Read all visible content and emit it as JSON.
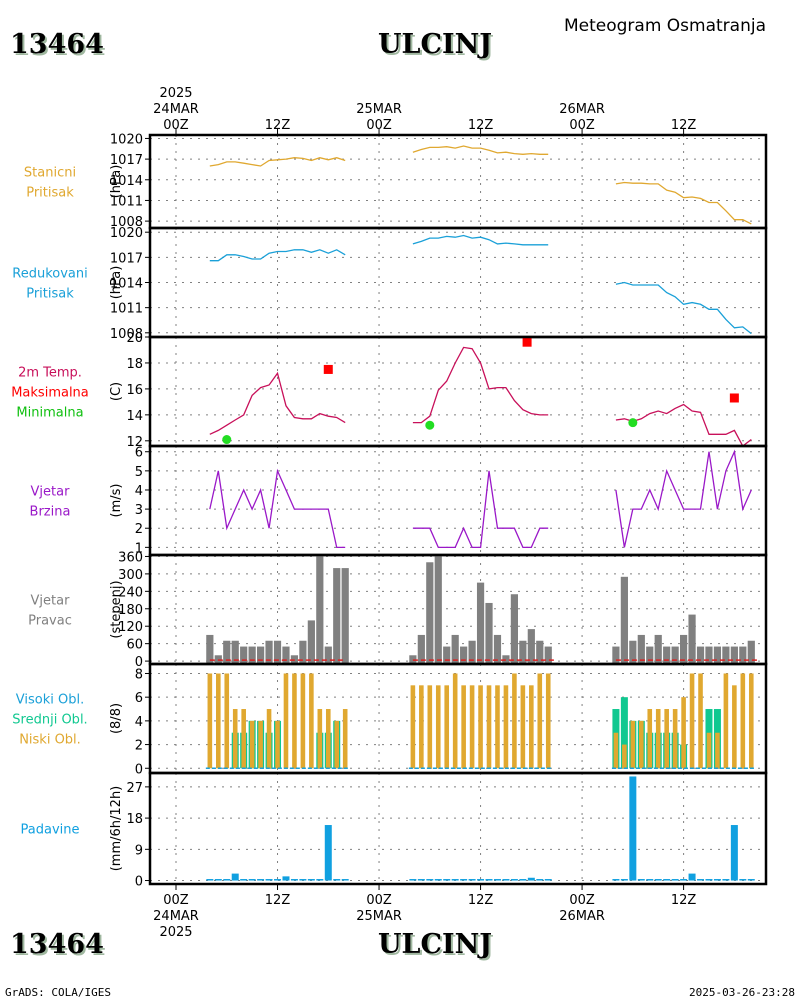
{
  "header": {
    "station_id": "13464",
    "station_name": "ULCINJ",
    "subtitle": "Meteogram Osmatranja"
  },
  "footer": {
    "credit": "GrADS: COLA/IGES",
    "timestamp": "2025-03-26-23:28"
  },
  "time_axis": {
    "start": "2025-03-24 00Z",
    "ticks": [
      {
        "hour": 0,
        "label": "00Z",
        "date": "24MAR",
        "year": "2025"
      },
      {
        "hour": 12,
        "label": "12Z",
        "date": "",
        "year": ""
      },
      {
        "hour": 24,
        "label": "00Z",
        "date": "25MAR",
        "year": ""
      },
      {
        "hour": 36,
        "label": "12Z",
        "date": "",
        "year": ""
      },
      {
        "hour": 48,
        "label": "00Z",
        "date": "26MAR",
        "year": ""
      },
      {
        "hour": 60,
        "label": "12Z",
        "date": "",
        "year": ""
      }
    ],
    "range_hours": [
      -3,
      70
    ]
  },
  "chart_data": [
    {
      "type": "line",
      "id": "station_pressure",
      "title": [
        "Stanicni",
        "Pritisak"
      ],
      "ylabel": "(hPa)",
      "color": "#e0a830",
      "ylim": [
        1007,
        1020.5
      ],
      "yticks": [
        1008,
        1011,
        1014,
        1017,
        1020
      ],
      "segments": [
        {
          "x": [
            4,
            5,
            6,
            7,
            8,
            9,
            10,
            11,
            12,
            13,
            14,
            15,
            16,
            17,
            18,
            19,
            20
          ],
          "y": [
            1016.0,
            1016.2,
            1016.6,
            1016.6,
            1016.4,
            1016.2,
            1016.0,
            1016.8,
            1016.9,
            1017.0,
            1017.2,
            1017.1,
            1016.8,
            1017.2,
            1016.9,
            1017.2,
            1016.8
          ]
        },
        {
          "x": [
            28,
            29,
            30,
            31,
            32,
            33,
            34,
            35,
            36,
            37,
            38,
            39,
            40,
            41,
            42,
            43,
            44
          ],
          "y": [
            1018.0,
            1018.4,
            1018.7,
            1018.7,
            1018.8,
            1018.6,
            1018.9,
            1018.6,
            1018.6,
            1018.3,
            1017.9,
            1018.0,
            1017.8,
            1017.7,
            1017.8,
            1017.7,
            1017.7
          ]
        },
        {
          "x": [
            52,
            53,
            54,
            55,
            56,
            57,
            58,
            59,
            60,
            61,
            62,
            63,
            64,
            65,
            66,
            67,
            68
          ],
          "y": [
            1013.4,
            1013.6,
            1013.5,
            1013.5,
            1013.4,
            1013.4,
            1012.5,
            1012.2,
            1011.4,
            1011.5,
            1011.3,
            1010.7,
            1010.7,
            1009.5,
            1008.2,
            1008.2,
            1007.6
          ]
        }
      ]
    },
    {
      "type": "line",
      "id": "reduced_pressure",
      "title": [
        "Redukovani",
        "Pritisak"
      ],
      "ylabel": "(hPa)",
      "color": "#1aa0d8",
      "ylim": [
        1007.5,
        1020.5
      ],
      "yticks": [
        1008,
        1011,
        1014,
        1017,
        1020
      ],
      "segments": [
        {
          "x": [
            4,
            5,
            6,
            7,
            8,
            9,
            10,
            11,
            12,
            13,
            14,
            15,
            16,
            17,
            18,
            19,
            20
          ],
          "y": [
            1016.6,
            1016.6,
            1017.3,
            1017.3,
            1017.1,
            1016.8,
            1016.8,
            1017.5,
            1017.7,
            1017.7,
            1017.9,
            1017.9,
            1017.6,
            1017.9,
            1017.5,
            1017.9,
            1017.3
          ]
        },
        {
          "x": [
            28,
            29,
            30,
            31,
            32,
            33,
            34,
            35,
            36,
            37,
            38,
            39,
            40,
            41,
            42,
            43,
            44
          ],
          "y": [
            1018.6,
            1018.9,
            1019.3,
            1019.3,
            1019.5,
            1019.4,
            1019.6,
            1019.3,
            1019.4,
            1019.1,
            1018.6,
            1018.7,
            1018.6,
            1018.5,
            1018.5,
            1018.5,
            1018.5
          ]
        },
        {
          "x": [
            52,
            53,
            54,
            55,
            56,
            57,
            58,
            59,
            60,
            61,
            62,
            63,
            64,
            65,
            66,
            67,
            68
          ],
          "y": [
            1013.8,
            1014.0,
            1013.7,
            1013.7,
            1013.7,
            1013.7,
            1012.8,
            1012.3,
            1011.4,
            1011.6,
            1011.4,
            1010.8,
            1010.8,
            1009.6,
            1008.6,
            1008.7,
            1007.9
          ]
        }
      ]
    },
    {
      "type": "line",
      "id": "temperature",
      "title": [
        "2m Temp.",
        "Maksimalna",
        "Minimalna"
      ],
      "title_colors": [
        "#c8105a",
        "#ff0000",
        "#10c010"
      ],
      "ylabel": "(C)",
      "color": "#c8105a",
      "ylim": [
        11.6,
        20
      ],
      "yticks": [
        12,
        14,
        16,
        18,
        20
      ],
      "segments": [
        {
          "x": [
            4,
            5,
            6,
            7,
            8,
            9,
            10,
            11,
            12,
            13,
            14,
            15,
            16,
            17,
            18,
            19,
            20
          ],
          "y": [
            12.5,
            12.8,
            13.2,
            13.6,
            14.0,
            15.5,
            16.1,
            16.3,
            17.2,
            14.7,
            13.8,
            13.7,
            13.7,
            14.1,
            13.9,
            13.8,
            13.4
          ]
        },
        {
          "x": [
            28,
            29,
            30,
            31,
            32,
            33,
            34,
            35,
            36,
            37,
            38,
            39,
            40,
            41,
            42,
            43,
            44
          ],
          "y": [
            13.4,
            13.4,
            13.9,
            15.9,
            16.6,
            18.0,
            19.2,
            19.1,
            18.0,
            16.0,
            16.1,
            16.1,
            15.1,
            14.4,
            14.1,
            14.0,
            14.0
          ]
        },
        {
          "x": [
            52,
            53,
            54,
            55,
            56,
            57,
            58,
            59,
            60,
            61,
            62,
            63,
            64,
            65,
            66,
            67,
            68
          ],
          "y": [
            13.6,
            13.7,
            13.5,
            13.7,
            14.1,
            14.3,
            14.1,
            14.5,
            14.8,
            14.3,
            14.2,
            12.5,
            12.5,
            12.5,
            12.8,
            11.6,
            12.1
          ]
        }
      ],
      "max_points": [
        {
          "x": 18,
          "y": 17.5
        },
        {
          "x": 41.5,
          "y": 19.6
        },
        {
          "x": 66,
          "y": 15.3
        }
      ],
      "min_points": [
        {
          "x": 6,
          "y": 12.1
        },
        {
          "x": 30,
          "y": 13.2
        },
        {
          "x": 54,
          "y": 13.4
        }
      ],
      "max_color": "#ff0000",
      "min_color": "#22dd22"
    },
    {
      "type": "line",
      "id": "wind_speed",
      "title": [
        "Vjetar",
        "Brzina"
      ],
      "ylabel": "(m/s)",
      "color": "#9a18c8",
      "ylim": [
        0.6,
        6.3
      ],
      "yticks": [
        1,
        2,
        3,
        4,
        5,
        6
      ],
      "segments": [
        {
          "x": [
            4,
            5,
            6,
            7,
            8,
            9,
            10,
            11,
            12,
            13,
            14,
            15,
            16,
            17,
            18,
            19,
            20
          ],
          "y": [
            3,
            5,
            2,
            3,
            4,
            3,
            4,
            2,
            5,
            4,
            3,
            3,
            3,
            3,
            3,
            1,
            1
          ]
        },
        {
          "x": [
            28,
            29,
            30,
            31,
            32,
            33,
            34,
            35,
            36,
            37,
            38,
            39,
            40,
            41,
            42,
            43,
            44
          ],
          "y": [
            2,
            2,
            2,
            1,
            1,
            1,
            2,
            1,
            1,
            5,
            2,
            2,
            2,
            1,
            1,
            2,
            2
          ]
        },
        {
          "x": [
            52,
            53,
            54,
            55,
            56,
            57,
            58,
            59,
            60,
            61,
            62,
            63,
            64,
            65,
            66,
            67,
            68
          ],
          "y": [
            4,
            1,
            3,
            3,
            4,
            3,
            5,
            4,
            3,
            3,
            3,
            6,
            3,
            5,
            6,
            3,
            4
          ]
        }
      ]
    },
    {
      "type": "bar",
      "id": "wind_direction",
      "title": [
        "Vjetar",
        "Pravac"
      ],
      "ylabel": "(stepeni)",
      "color": "#808080",
      "baseline_color": "#dd2020",
      "ylim": [
        -10,
        365
      ],
      "yticks": [
        0,
        60,
        120,
        180,
        240,
        300,
        360
      ],
      "groups": [
        {
          "x": [
            4,
            5,
            6,
            7,
            8,
            9,
            10,
            11,
            12,
            13,
            14,
            15,
            16,
            17,
            18,
            19,
            20
          ],
          "y": [
            90,
            20,
            70,
            70,
            50,
            50,
            50,
            70,
            70,
            50,
            20,
            70,
            140,
            360,
            50,
            320,
            320
          ]
        },
        {
          "x": [
            28,
            29,
            30,
            31,
            32,
            33,
            34,
            35,
            36,
            37,
            38,
            39,
            40,
            41,
            42,
            43,
            44,
            45
          ],
          "y": [
            20,
            90,
            340,
            360,
            50,
            90,
            50,
            70,
            270,
            200,
            90,
            20,
            230,
            70,
            110,
            70,
            50,
            0
          ]
        },
        {
          "x": [
            52,
            53,
            54,
            55,
            56,
            57,
            58,
            59,
            60,
            61,
            62,
            63,
            64,
            65,
            66,
            67,
            68,
            69
          ],
          "y": [
            50,
            290,
            70,
            90,
            50,
            90,
            50,
            50,
            90,
            160,
            50,
            50,
            50,
            50,
            50,
            50,
            70,
            0
          ]
        }
      ]
    },
    {
      "type": "bar",
      "id": "cloud_cover",
      "title": [
        "Visoki Obl.",
        "Srednji Obl.",
        "Niski Obl."
      ],
      "title_colors": [
        "#1aa0d8",
        "#10c890",
        "#e0a830"
      ],
      "ylabel": "(8/8)",
      "ylim": [
        -0.4,
        8.8
      ],
      "yticks": [
        0,
        2,
        4,
        6,
        8
      ],
      "series_colors": {
        "high": "#1aa0d8",
        "middle": "#10c890",
        "low": "#e0a830"
      },
      "groups": [
        {
          "x": [
            4,
            5,
            6,
            7,
            8,
            9,
            10,
            11,
            12,
            13,
            14,
            15,
            16,
            17,
            18,
            19,
            20
          ],
          "low": [
            8,
            8,
            8,
            5,
            5,
            4,
            4,
            5,
            4,
            8,
            8,
            8,
            8,
            5,
            5,
            4,
            5
          ],
          "middle": [
            0,
            0,
            0,
            3,
            3,
            4,
            4,
            3,
            4,
            0,
            0,
            0,
            0,
            3,
            3,
            4,
            0
          ],
          "high": [
            0,
            0,
            0,
            0,
            0,
            0,
            0,
            0,
            0,
            0,
            0,
            0,
            0,
            0,
            0,
            0,
            0
          ]
        },
        {
          "x": [
            28,
            29,
            30,
            31,
            32,
            33,
            34,
            35,
            36,
            37,
            38,
            39,
            40,
            41,
            42,
            43,
            44
          ],
          "low": [
            7,
            7,
            7,
            7,
            7,
            8,
            7,
            7,
            7,
            7,
            7,
            7,
            8,
            7,
            7,
            8,
            8
          ],
          "middle": [
            0,
            0,
            0,
            0,
            0,
            0,
            0,
            0,
            0,
            0,
            0,
            0,
            0,
            0,
            0,
            0,
            0
          ],
          "high": [
            0,
            0,
            0,
            0,
            0,
            0,
            0,
            0,
            0,
            0,
            0,
            0,
            0,
            0,
            0,
            0,
            0
          ]
        },
        {
          "x": [
            52,
            53,
            54,
            55,
            56,
            57,
            58,
            59,
            60,
            61,
            62,
            63,
            64,
            65,
            66,
            67,
            68
          ],
          "low": [
            3,
            2,
            4,
            4,
            5,
            5,
            5,
            5,
            6,
            8,
            8,
            3,
            3,
            8,
            7,
            8,
            8
          ],
          "middle": [
            5,
            6,
            4,
            4,
            3,
            3,
            3,
            3,
            2,
            0,
            0,
            5,
            5,
            0,
            0,
            0,
            0
          ],
          "high": [
            0,
            0,
            0,
            0,
            0,
            0,
            0,
            0,
            0,
            0,
            0,
            0,
            0,
            0,
            0,
            0,
            0
          ]
        }
      ]
    },
    {
      "type": "bar",
      "id": "precipitation",
      "title": [
        "Padavine"
      ],
      "ylabel": "(mm/6h/12h)",
      "color": "#10a0e0",
      "ylim": [
        -1,
        31
      ],
      "yticks": [
        0,
        9,
        18,
        27
      ],
      "groups": [
        {
          "x": [
            4,
            5,
            6,
            7,
            8,
            9,
            10,
            11,
            12,
            13,
            14,
            15,
            16,
            17,
            18,
            19,
            20
          ],
          "y": [
            0.2,
            0.2,
            0.2,
            2.0,
            0.2,
            0.2,
            0.2,
            0.2,
            0.2,
            1.2,
            0.2,
            0.2,
            0.2,
            0.2,
            16.0,
            0.2,
            0.2
          ]
        },
        {
          "x": [
            28,
            29,
            30,
            31,
            32,
            33,
            34,
            35,
            36,
            37,
            38,
            39,
            40,
            41,
            42,
            43,
            44
          ],
          "y": [
            0.2,
            0.2,
            0.2,
            0.2,
            0.2,
            0.2,
            0.2,
            0.2,
            0.2,
            0.2,
            0.2,
            0.2,
            0.2,
            0.2,
            0.8,
            0.2,
            0.2
          ]
        },
        {
          "x": [
            52,
            53,
            54,
            55,
            56,
            57,
            58,
            59,
            60,
            61,
            62,
            63,
            64,
            65,
            66,
            67,
            68
          ],
          "y": [
            0.2,
            0.2,
            30.0,
            0.2,
            0.2,
            0.2,
            0.2,
            0.2,
            0.2,
            2.0,
            0.2,
            0.2,
            0.2,
            0.2,
            16.0,
            0.2,
            0.2
          ]
        }
      ]
    }
  ]
}
